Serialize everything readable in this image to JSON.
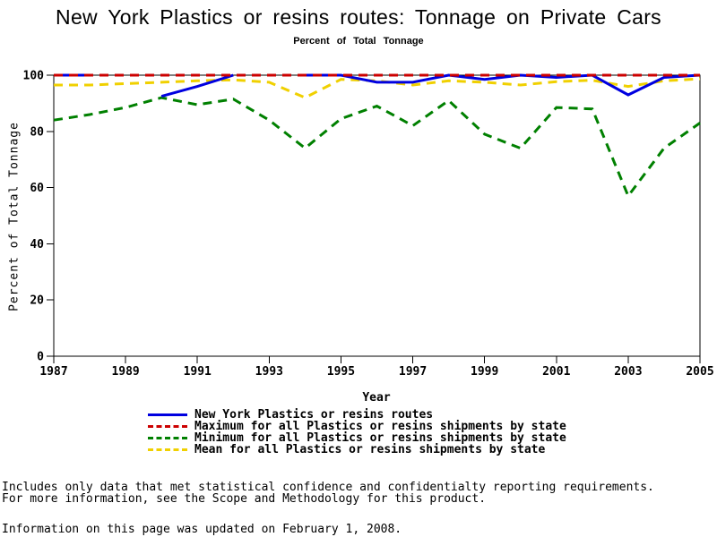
{
  "chart_data": {
    "type": "line",
    "title": "New York Plastics or resins routes: Tonnage on Private Cars",
    "subtitle": "Percent of Total Tonnage",
    "xlabel": "Year",
    "ylabel": "Percent of Total Tonnage",
    "xlim": [
      1987,
      2005
    ],
    "ylim": [
      0,
      100
    ],
    "x_ticks": [
      1987,
      1989,
      1991,
      1993,
      1995,
      1997,
      1999,
      2001,
      2003,
      2005
    ],
    "y_ticks": [
      0,
      20,
      40,
      60,
      80,
      100
    ],
    "grid": false,
    "legend_position": "bottom",
    "frame_color": "#000000",
    "x": [
      1987,
      1988,
      1989,
      1990,
      1991,
      1992,
      1993,
      1994,
      1995,
      1996,
      1997,
      1998,
      1999,
      2000,
      2001,
      2002,
      2003,
      2004,
      2005
    ],
    "series": [
      {
        "name": "New York Plastics or resins routes",
        "color": "#0000e0",
        "style": "solid",
        "values": [
          100,
          100,
          null,
          92.5,
          96,
          100,
          null,
          100,
          100,
          97.5,
          97.5,
          100,
          98.5,
          100,
          99.2,
          100,
          93,
          99.2,
          100
        ]
      },
      {
        "name": "Maximum for all Plastics or resins shipments by state",
        "color": "#cc0000",
        "style": "dashed",
        "values": [
          100,
          100,
          100,
          100,
          100,
          100,
          100,
          100,
          100,
          100,
          100,
          100,
          100,
          100,
          100,
          100,
          100,
          100,
          100
        ]
      },
      {
        "name": "Minimum for all Plastics or resins shipments by state",
        "color": "#008000",
        "style": "dashed",
        "values": [
          84,
          86,
          88.5,
          92,
          89.5,
          91.5,
          84,
          74,
          84.5,
          89,
          82,
          91,
          79,
          74,
          88.5,
          88,
          57,
          74,
          83
        ]
      },
      {
        "name": "Mean for all Plastics or resins shipments by state",
        "color": "#f0d000",
        "style": "dashed",
        "values": [
          96.5,
          96.5,
          97,
          97.5,
          98,
          98.3,
          97.5,
          92,
          98.5,
          98,
          96.5,
          98,
          97.5,
          96.5,
          97.7,
          98.2,
          96,
          98,
          98.7
        ]
      }
    ],
    "draw_order": [
      2,
      3,
      0,
      1
    ]
  },
  "footer": {
    "line1": "Includes only data that met statistical confidence and confidentialty reporting requirements.",
    "line2": "For more information, see the Scope and Methodology for this product.",
    "line3": "Information on this page was updated on February 1, 2008."
  }
}
